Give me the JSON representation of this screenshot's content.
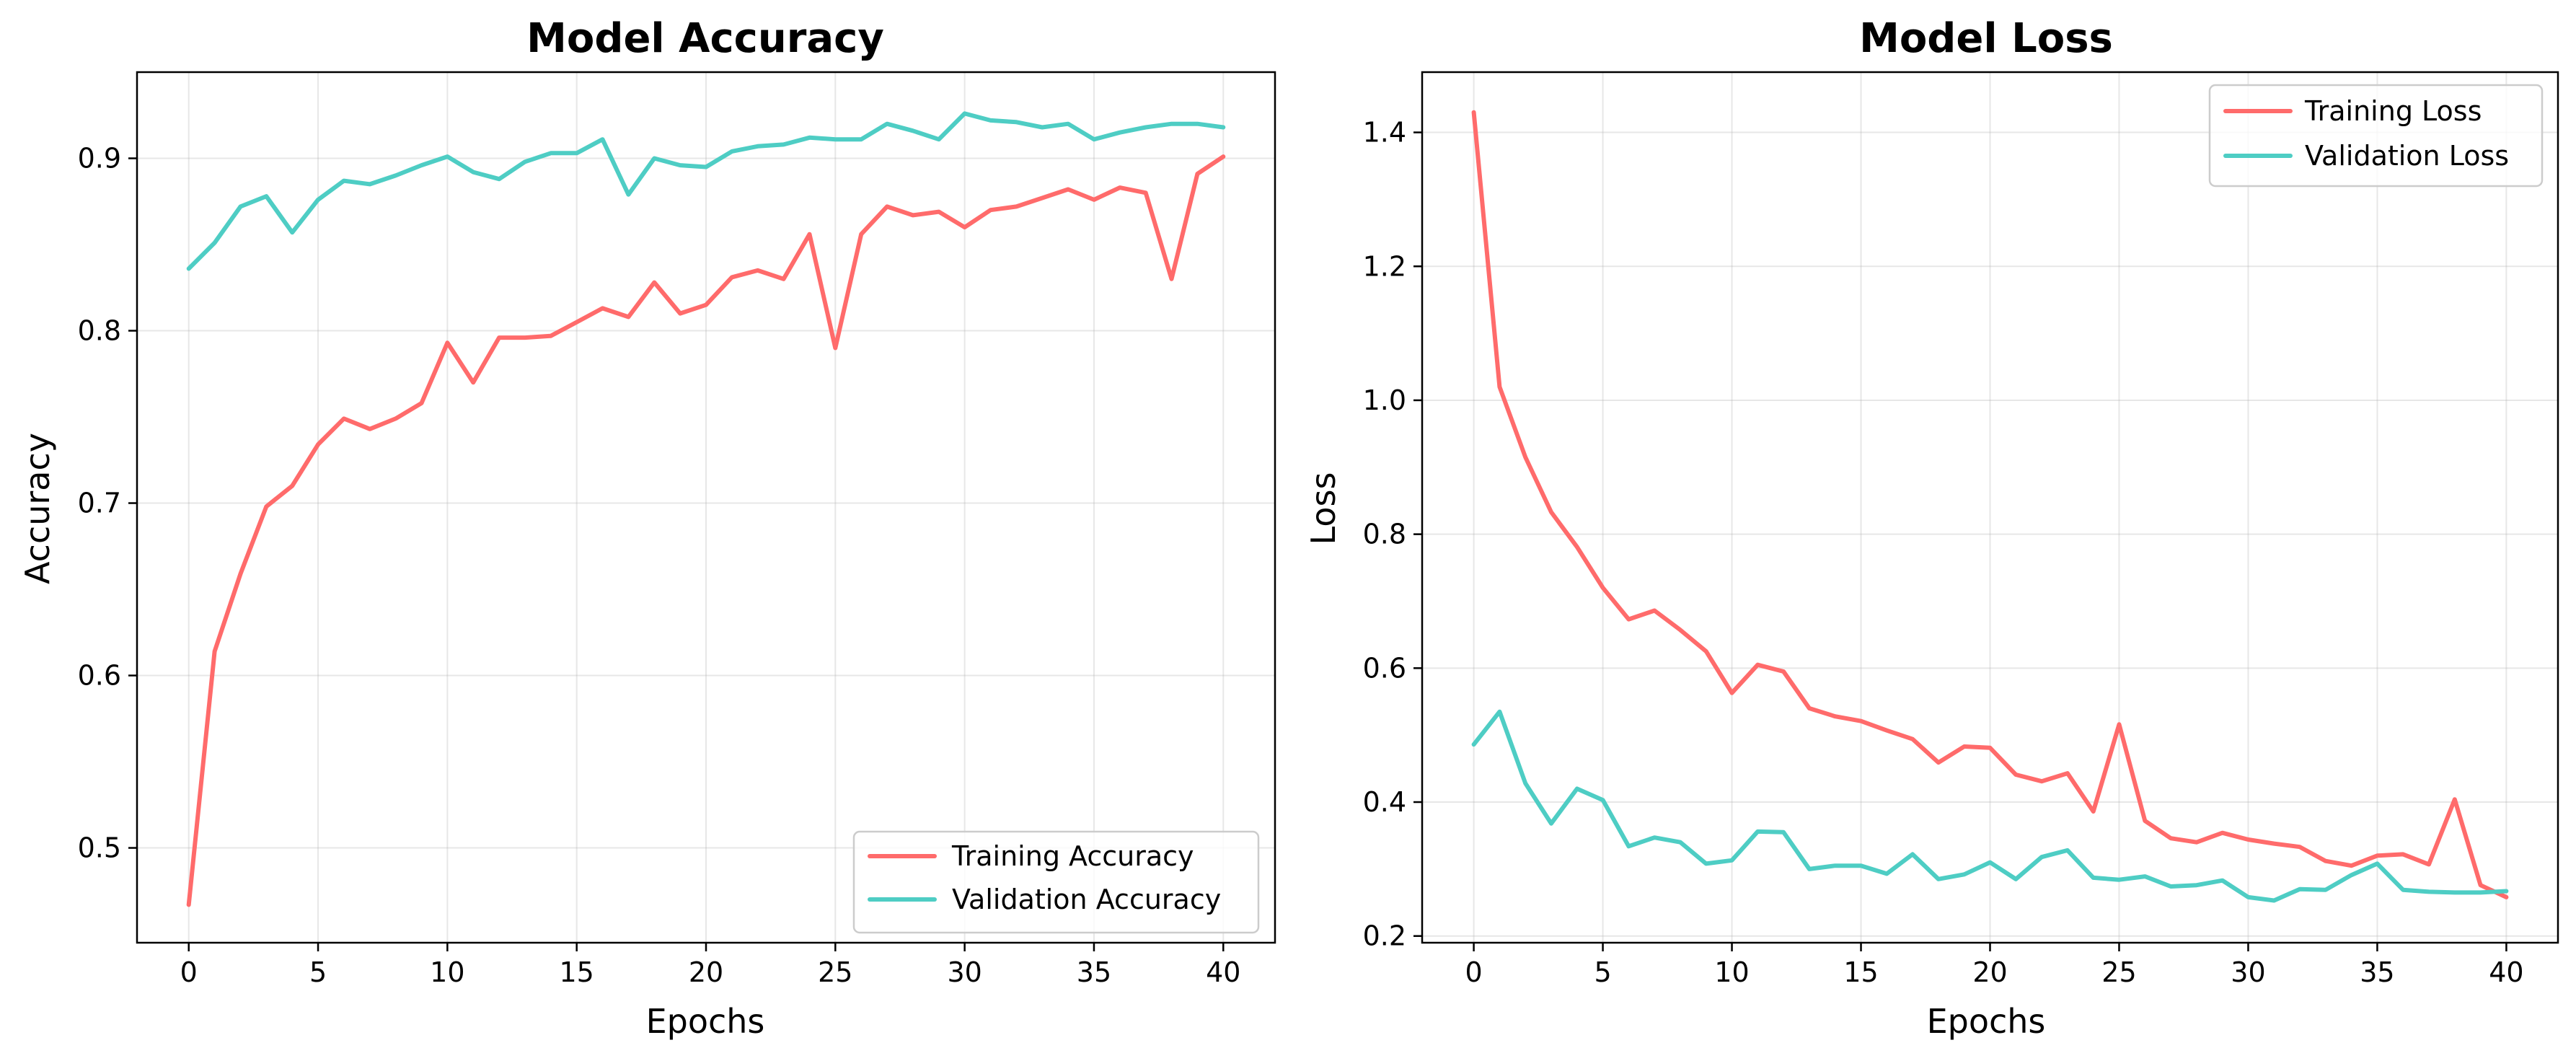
{
  "chart_data": [
    {
      "type": "line",
      "title": "Model Accuracy",
      "xlabel": "Epochs",
      "ylabel": "Accuracy",
      "xlim": [
        -2,
        42
      ],
      "ylim": [
        0.445,
        0.95
      ],
      "xticks": [
        0,
        5,
        10,
        15,
        20,
        25,
        30,
        35,
        40
      ],
      "yticks": [
        0.5,
        0.6,
        0.7,
        0.8,
        0.9
      ],
      "grid": true,
      "legend_position": "lower-right",
      "x": [
        0,
        1,
        2,
        3,
        4,
        5,
        6,
        7,
        8,
        9,
        10,
        11,
        12,
        13,
        14,
        15,
        16,
        17,
        18,
        19,
        20,
        21,
        22,
        23,
        24,
        25,
        26,
        27,
        28,
        29,
        30,
        31,
        32,
        33,
        34,
        35,
        36,
        37,
        38,
        39,
        40
      ],
      "series": [
        {
          "name": "Training Accuracy",
          "color": "#ff6b6b",
          "values": [
            0.467,
            0.614,
            0.659,
            0.698,
            0.71,
            0.734,
            0.749,
            0.743,
            0.749,
            0.758,
            0.793,
            0.77,
            0.796,
            0.796,
            0.797,
            0.805,
            0.813,
            0.808,
            0.828,
            0.81,
            0.815,
            0.831,
            0.835,
            0.83,
            0.856,
            0.79,
            0.856,
            0.872,
            0.867,
            0.869,
            0.86,
            0.87,
            0.872,
            0.877,
            0.882,
            0.876,
            0.883,
            0.88,
            0.83,
            0.891,
            0.901
          ]
        },
        {
          "name": "Validation Accuracy",
          "color": "#4ecdc4",
          "values": [
            0.836,
            0.851,
            0.872,
            0.878,
            0.857,
            0.876,
            0.887,
            0.885,
            0.89,
            0.896,
            0.901,
            0.892,
            0.888,
            0.898,
            0.903,
            0.903,
            0.911,
            0.879,
            0.9,
            0.896,
            0.895,
            0.904,
            0.907,
            0.908,
            0.912,
            0.911,
            0.911,
            0.92,
            0.916,
            0.911,
            0.926,
            0.922,
            0.921,
            0.918,
            0.92,
            0.911,
            0.915,
            0.918,
            0.92,
            0.92,
            0.918
          ]
        }
      ]
    },
    {
      "type": "line",
      "title": "Model Loss",
      "xlabel": "Epochs",
      "ylabel": "Loss",
      "xlim": [
        -2,
        42
      ],
      "ylim": [
        0.19,
        1.49
      ],
      "xticks": [
        0,
        5,
        10,
        15,
        20,
        25,
        30,
        35,
        40
      ],
      "yticks": [
        0.2,
        0.4,
        0.6,
        0.8,
        1.0,
        1.2,
        1.4
      ],
      "ytick_labels": [
        "0.2",
        "0.4",
        "0.6",
        "0.8",
        "1.0",
        "1.2",
        "1.4"
      ],
      "grid": true,
      "legend_position": "upper-right",
      "x": [
        0,
        1,
        2,
        3,
        4,
        5,
        6,
        7,
        8,
        9,
        10,
        11,
        12,
        13,
        14,
        15,
        16,
        17,
        18,
        19,
        20,
        21,
        22,
        23,
        24,
        25,
        26,
        27,
        28,
        29,
        30,
        31,
        32,
        33,
        34,
        35,
        36,
        37,
        38,
        39,
        40
      ],
      "series": [
        {
          "name": "Training Loss",
          "color": "#ff6b6b",
          "values": [
            1.43,
            1.02,
            0.915,
            0.833,
            0.781,
            0.72,
            0.673,
            0.686,
            0.657,
            0.625,
            0.563,
            0.605,
            0.595,
            0.54,
            0.528,
            0.521,
            0.507,
            0.494,
            0.459,
            0.483,
            0.481,
            0.441,
            0.431,
            0.443,
            0.386,
            0.516,
            0.372,
            0.346,
            0.34,
            0.354,
            0.344,
            0.338,
            0.333,
            0.312,
            0.305,
            0.32,
            0.322,
            0.307,
            0.404,
            0.276,
            0.258
          ]
        },
        {
          "name": "Validation Loss",
          "color": "#4ecdc4",
          "values": [
            0.486,
            0.535,
            0.428,
            0.368,
            0.42,
            0.403,
            0.334,
            0.347,
            0.34,
            0.308,
            0.313,
            0.356,
            0.355,
            0.3,
            0.305,
            0.305,
            0.293,
            0.322,
            0.285,
            0.292,
            0.31,
            0.285,
            0.318,
            0.328,
            0.287,
            0.284,
            0.289,
            0.274,
            0.276,
            0.283,
            0.258,
            0.253,
            0.27,
            0.269,
            0.291,
            0.308,
            0.269,
            0.266,
            0.265,
            0.265,
            0.267
          ]
        }
      ]
    }
  ]
}
